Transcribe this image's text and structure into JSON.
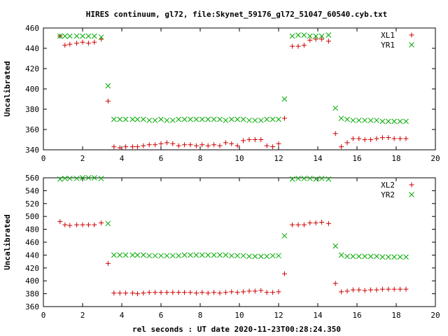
{
  "chart_data": {
    "title": "HIRES continuum, gl72, file:Skynet_59176_gl72_51047_60540.cyb.txt",
    "xlabel": "rel seconds : UT date 2020-11-23T00:28:24.350",
    "colors": {
      "red": "#cc0000",
      "green": "#00aa00"
    },
    "panels": [
      {
        "type": "scatter",
        "ylabel": "Uncalibrated",
        "xlim": [
          0,
          20
        ],
        "ylim": [
          340,
          460
        ],
        "xticks": [
          0,
          2,
          4,
          6,
          8,
          10,
          12,
          14,
          16,
          18,
          20
        ],
        "yticks": [
          340,
          360,
          380,
          400,
          420,
          440,
          460
        ],
        "legend": "top-right",
        "series": [
          {
            "name": "XL1",
            "marker": "plus",
            "color": "#cc0000",
            "points": [
              [
                0.85,
                452
              ],
              [
                1.1,
                443
              ],
              [
                1.35,
                444
              ],
              [
                1.7,
                445
              ],
              [
                2.0,
                446
              ],
              [
                2.3,
                445
              ],
              [
                2.6,
                446
              ],
              [
                2.95,
                449
              ],
              [
                3.3,
                388
              ],
              [
                3.6,
                343
              ],
              [
                3.9,
                342
              ],
              [
                4.2,
                343
              ],
              [
                4.55,
                343
              ],
              [
                4.8,
                343
              ],
              [
                5.1,
                344
              ],
              [
                5.4,
                345
              ],
              [
                5.7,
                345
              ],
              [
                6.0,
                346
              ],
              [
                6.3,
                347
              ],
              [
                6.6,
                346
              ],
              [
                6.9,
                344
              ],
              [
                7.2,
                345
              ],
              [
                7.5,
                345
              ],
              [
                7.8,
                344
              ],
              [
                8.1,
                345
              ],
              [
                8.4,
                344
              ],
              [
                8.7,
                345
              ],
              [
                9.0,
                344
              ],
              [
                9.3,
                347
              ],
              [
                9.6,
                346
              ],
              [
                9.9,
                344
              ],
              [
                10.2,
                349
              ],
              [
                10.5,
                350
              ],
              [
                10.8,
                350
              ],
              [
                11.1,
                350
              ],
              [
                11.4,
                344
              ],
              [
                11.7,
                343
              ],
              [
                12.0,
                346
              ],
              [
                12.3,
                371
              ],
              [
                12.7,
                442
              ],
              [
                13.0,
                442
              ],
              [
                13.3,
                443
              ],
              [
                13.6,
                448
              ],
              [
                13.9,
                449
              ],
              [
                14.2,
                449
              ],
              [
                14.55,
                447
              ],
              [
                14.9,
                356
              ],
              [
                15.2,
                343
              ],
              [
                15.5,
                347
              ],
              [
                15.8,
                351
              ],
              [
                16.1,
                351
              ],
              [
                16.4,
                350
              ],
              [
                16.7,
                350
              ],
              [
                17.0,
                351
              ],
              [
                17.3,
                352
              ],
              [
                17.6,
                352
              ],
              [
                17.9,
                351
              ],
              [
                18.2,
                351
              ],
              [
                18.5,
                351
              ]
            ]
          },
          {
            "name": "YR1",
            "marker": "cross",
            "color": "#00aa00",
            "points": [
              [
                0.85,
                452
              ],
              [
                1.1,
                452
              ],
              [
                1.35,
                452
              ],
              [
                1.7,
                452
              ],
              [
                2.0,
                452
              ],
              [
                2.3,
                452
              ],
              [
                2.6,
                452
              ],
              [
                2.95,
                451
              ],
              [
                3.3,
                403
              ],
              [
                3.6,
                370
              ],
              [
                3.9,
                370
              ],
              [
                4.2,
                370
              ],
              [
                4.55,
                370
              ],
              [
                4.8,
                370
              ],
              [
                5.1,
                370
              ],
              [
                5.4,
                369
              ],
              [
                5.7,
                369
              ],
              [
                6.0,
                370
              ],
              [
                6.3,
                369
              ],
              [
                6.6,
                369
              ],
              [
                6.9,
                370
              ],
              [
                7.2,
                370
              ],
              [
                7.5,
                370
              ],
              [
                7.8,
                370
              ],
              [
                8.1,
                370
              ],
              [
                8.4,
                370
              ],
              [
                8.7,
                370
              ],
              [
                9.0,
                370
              ],
              [
                9.3,
                369
              ],
              [
                9.6,
                370
              ],
              [
                9.9,
                370
              ],
              [
                10.2,
                370
              ],
              [
                10.5,
                369
              ],
              [
                10.8,
                369
              ],
              [
                11.1,
                369
              ],
              [
                11.4,
                370
              ],
              [
                11.7,
                370
              ],
              [
                12.0,
                370
              ],
              [
                12.3,
                390
              ],
              [
                12.7,
                452
              ],
              [
                13.0,
                453
              ],
              [
                13.3,
                453
              ],
              [
                13.6,
                452
              ],
              [
                13.9,
                452
              ],
              [
                14.2,
                452
              ],
              [
                14.55,
                453
              ],
              [
                14.9,
                381
              ],
              [
                15.2,
                371
              ],
              [
                15.5,
                370
              ],
              [
                15.8,
                369
              ],
              [
                16.1,
                369
              ],
              [
                16.4,
                369
              ],
              [
                16.7,
                369
              ],
              [
                17.0,
                369
              ],
              [
                17.3,
                368
              ],
              [
                17.6,
                368
              ],
              [
                17.9,
                368
              ],
              [
                18.2,
                368
              ],
              [
                18.5,
                368
              ]
            ]
          }
        ]
      },
      {
        "type": "scatter",
        "ylabel": "Uncalibrated",
        "xlim": [
          0,
          20
        ],
        "ylim": [
          360,
          560
        ],
        "xticks": [
          0,
          2,
          4,
          6,
          8,
          10,
          12,
          14,
          16,
          18,
          20
        ],
        "yticks": [
          360,
          380,
          400,
          420,
          440,
          460,
          480,
          500,
          520,
          540,
          560
        ],
        "legend": "top-right",
        "series": [
          {
            "name": "XL2",
            "marker": "plus",
            "color": "#cc0000",
            "points": [
              [
                0.85,
                492
              ],
              [
                1.1,
                487
              ],
              [
                1.35,
                486
              ],
              [
                1.7,
                487
              ],
              [
                2.0,
                487
              ],
              [
                2.3,
                487
              ],
              [
                2.6,
                487
              ],
              [
                2.95,
                490
              ],
              [
                3.3,
                427
              ],
              [
                3.6,
                381
              ],
              [
                3.9,
                381
              ],
              [
                4.2,
                381
              ],
              [
                4.55,
                381
              ],
              [
                4.8,
                380
              ],
              [
                5.1,
                381
              ],
              [
                5.4,
                382
              ],
              [
                5.7,
                382
              ],
              [
                6.0,
                382
              ],
              [
                6.3,
                382
              ],
              [
                6.6,
                382
              ],
              [
                6.9,
                382
              ],
              [
                7.2,
                382
              ],
              [
                7.5,
                382
              ],
              [
                7.8,
                381
              ],
              [
                8.1,
                382
              ],
              [
                8.4,
                381
              ],
              [
                8.7,
                382
              ],
              [
                9.0,
                381
              ],
              [
                9.3,
                382
              ],
              [
                9.6,
                383
              ],
              [
                9.9,
                382
              ],
              [
                10.2,
                383
              ],
              [
                10.5,
                384
              ],
              [
                10.8,
                384
              ],
              [
                11.1,
                385
              ],
              [
                11.4,
                382
              ],
              [
                11.7,
                382
              ],
              [
                12.0,
                383
              ],
              [
                12.3,
                411
              ],
              [
                12.7,
                487
              ],
              [
                13.0,
                487
              ],
              [
                13.3,
                487
              ],
              [
                13.6,
                490
              ],
              [
                13.9,
                490
              ],
              [
                14.2,
                491
              ],
              [
                14.55,
                489
              ],
              [
                14.9,
                396
              ],
              [
                15.2,
                383
              ],
              [
                15.5,
                384
              ],
              [
                15.8,
                386
              ],
              [
                16.1,
                386
              ],
              [
                16.4,
                385
              ],
              [
                16.7,
                386
              ],
              [
                17.0,
                386
              ],
              [
                17.3,
                387
              ],
              [
                17.6,
                387
              ],
              [
                17.9,
                387
              ],
              [
                18.2,
                387
              ],
              [
                18.5,
                387
              ]
            ]
          },
          {
            "name": "YR2",
            "marker": "cross",
            "color": "#00aa00",
            "points": [
              [
                0.85,
                558
              ],
              [
                1.1,
                559
              ],
              [
                1.35,
                559
              ],
              [
                1.7,
                559
              ],
              [
                2.0,
                560
              ],
              [
                2.3,
                560
              ],
              [
                2.6,
                560
              ],
              [
                2.95,
                559
              ],
              [
                3.3,
                489
              ],
              [
                3.6,
                440
              ],
              [
                3.9,
                440
              ],
              [
                4.2,
                440
              ],
              [
                4.55,
                440
              ],
              [
                4.8,
                440
              ],
              [
                5.1,
                440
              ],
              [
                5.4,
                439
              ],
              [
                5.7,
                439
              ],
              [
                6.0,
                439
              ],
              [
                6.3,
                439
              ],
              [
                6.6,
                439
              ],
              [
                6.9,
                439
              ],
              [
                7.2,
                440
              ],
              [
                7.5,
                440
              ],
              [
                7.8,
                440
              ],
              [
                8.1,
                440
              ],
              [
                8.4,
                440
              ],
              [
                8.7,
                440
              ],
              [
                9.0,
                440
              ],
              [
                9.3,
                440
              ],
              [
                9.6,
                439
              ],
              [
                9.9,
                439
              ],
              [
                10.2,
                439
              ],
              [
                10.5,
                438
              ],
              [
                10.8,
                438
              ],
              [
                11.1,
                438
              ],
              [
                11.4,
                438
              ],
              [
                11.7,
                439
              ],
              [
                12.0,
                439
              ],
              [
                12.3,
                470
              ],
              [
                12.7,
                558
              ],
              [
                13.0,
                559
              ],
              [
                13.3,
                559
              ],
              [
                13.6,
                559
              ],
              [
                13.9,
                558
              ],
              [
                14.2,
                559
              ],
              [
                14.55,
                558
              ],
              [
                14.9,
                454
              ],
              [
                15.2,
                440
              ],
              [
                15.5,
                438
              ],
              [
                15.8,
                438
              ],
              [
                16.1,
                438
              ],
              [
                16.4,
                438
              ],
              [
                16.7,
                438
              ],
              [
                17.0,
                438
              ],
              [
                17.3,
                437
              ],
              [
                17.6,
                437
              ],
              [
                17.9,
                437
              ],
              [
                18.2,
                437
              ],
              [
                18.5,
                437
              ]
            ]
          }
        ]
      }
    ]
  }
}
